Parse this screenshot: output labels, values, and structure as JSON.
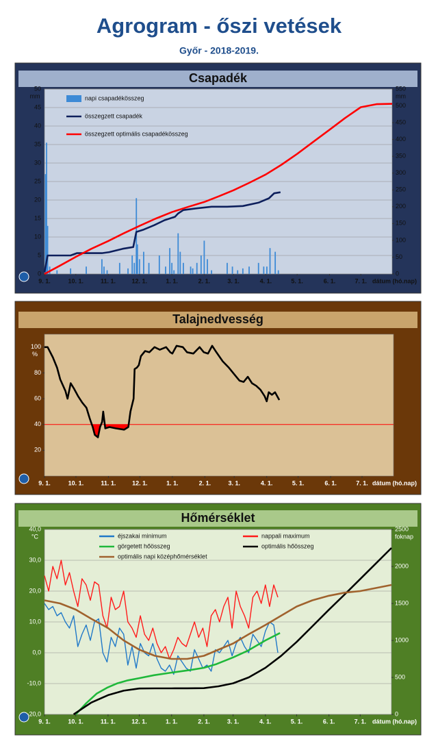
{
  "title": "Agrogram - őszi vetések",
  "subtitle": "Győr - 2018-2019.",
  "chart_data": [
    {
      "type": "combo",
      "title": "Csapadék",
      "ylabel": "mm",
      "y2label": "mm",
      "xlabel": "dátum (hó.nap)",
      "frame_color": "#24345a",
      "plot_color": "#c9d3e3",
      "grid": true,
      "legend": "upper left",
      "xlim": [
        0,
        333
      ],
      "xticks": [
        {
          "value": 0,
          "label": "9. 1."
        },
        {
          "value": 30,
          "label": "10. 1."
        },
        {
          "value": 61,
          "label": "11. 1."
        },
        {
          "value": 91,
          "label": "12. 1."
        },
        {
          "value": 122,
          "label": "1. 1."
        },
        {
          "value": 153,
          "label": "2. 1."
        },
        {
          "value": 181,
          "label": "3. 1."
        },
        {
          "value": 212,
          "label": "4. 1."
        },
        {
          "value": 242,
          "label": "5. 1."
        },
        {
          "value": 273,
          "label": "6. 1."
        },
        {
          "value": 303,
          "label": "7. 1."
        }
      ],
      "ylim": [
        0,
        50
      ],
      "yticks": [
        0,
        5,
        10,
        15,
        20,
        25,
        30,
        35,
        40,
        45,
        50
      ],
      "y2lim": [
        0,
        550
      ],
      "y2ticks": [
        0,
        50,
        100,
        150,
        200,
        250,
        300,
        350,
        400,
        450,
        500,
        550
      ],
      "series": [
        {
          "name": "napi csapadékösszeg",
          "type": "bar",
          "color": "#3d8ad6",
          "x": [
            1,
            2,
            3,
            5,
            12,
            25,
            40,
            55,
            57,
            60,
            72,
            80,
            84,
            86,
            88,
            89,
            91,
            95,
            100,
            110,
            116,
            120,
            122,
            124,
            128,
            130,
            133,
            140,
            142,
            146,
            150,
            153,
            156,
            160,
            175,
            180,
            185,
            190,
            196,
            205,
            210,
            213,
            216,
            221,
            224
          ],
          "values": [
            27,
            35.5,
            13,
            2,
            1,
            1.5,
            2,
            4,
            2,
            1,
            3,
            1.5,
            5,
            3,
            20.5,
            8,
            4,
            6,
            3,
            5,
            2,
            7,
            3,
            1,
            11,
            6,
            3,
            2,
            1.5,
            3,
            5,
            9,
            4,
            1,
            3,
            2,
            1,
            1.5,
            2,
            3,
            2,
            2,
            7,
            6,
            1
          ]
        },
        {
          "name": "összegzett csapadék",
          "type": "line",
          "color": "#0d1f5c",
          "axis": "y2",
          "x": [
            0,
            3,
            10,
            25,
            31,
            55,
            62,
            75,
            85,
            88,
            95,
            105,
            115,
            125,
            128,
            133,
            145,
            160,
            175,
            190,
            205,
            215,
            220,
            226
          ],
          "values": [
            5,
            55,
            55,
            55,
            62,
            62,
            65,
            75,
            80,
            125,
            132,
            145,
            160,
            170,
            180,
            190,
            195,
            200,
            200,
            202,
            212,
            225,
            240,
            243
          ]
        },
        {
          "name": "összegzett optimális csapadékösszeg",
          "type": "line",
          "color": "#ff0000",
          "axis": "y2",
          "x": [
            0,
            15,
            30,
            45,
            61,
            76,
            91,
            106,
            122,
            137,
            153,
            167,
            181,
            196,
            212,
            227,
            242,
            257,
            273,
            288,
            303,
            318,
            333
          ],
          "values": [
            0,
            25,
            51,
            75,
            98,
            121,
            143,
            164,
            184,
            199,
            214,
            231,
            249,
            271,
            296,
            325,
            357,
            392,
            429,
            464,
            496,
            505,
            506
          ]
        }
      ]
    },
    {
      "type": "line",
      "title": "Talajnedvesség",
      "ylabel": "%",
      "xlabel": "dátum (hó.nap)",
      "frame_color": "#6b3809",
      "plot_color": "#dbc196",
      "grid": false,
      "threshold": 40,
      "threshold_color": "#ff0000",
      "xlim": [
        0,
        333
      ],
      "xticks": [
        {
          "value": 0,
          "label": "9. 1."
        },
        {
          "value": 30,
          "label": "10. 1."
        },
        {
          "value": 61,
          "label": "11. 1."
        },
        {
          "value": 91,
          "label": "12. 1."
        },
        {
          "value": 122,
          "label": "1. 1."
        },
        {
          "value": 153,
          "label": "2. 1."
        },
        {
          "value": 181,
          "label": "3. 1."
        },
        {
          "value": 212,
          "label": "4. 1."
        },
        {
          "value": 242,
          "label": "5. 1."
        },
        {
          "value": 273,
          "label": "6. 1."
        },
        {
          "value": 303,
          "label": "7. 1."
        }
      ],
      "ylim": [
        0,
        110
      ],
      "yticks": [
        20,
        40,
        60,
        80,
        100
      ],
      "series": [
        {
          "type": "line",
          "color": "#000000",
          "x": [
            0,
            3,
            8,
            12,
            15,
            20,
            22,
            25,
            28,
            32,
            36,
            40,
            43,
            46,
            48,
            51,
            53,
            55,
            56,
            58,
            62,
            68,
            76,
            80,
            82,
            85,
            86,
            88,
            90,
            92,
            96,
            100,
            105,
            110,
            116,
            120,
            122,
            126,
            132,
            136,
            142,
            148,
            152,
            156,
            160,
            164,
            170,
            176,
            182,
            186,
            190,
            194,
            198,
            202,
            206,
            210,
            212,
            214,
            217,
            220,
            224
          ],
          "values": [
            100,
            100,
            92,
            84,
            75,
            66,
            60,
            72,
            68,
            62,
            57,
            53,
            45,
            38,
            32,
            30,
            38,
            42,
            50,
            37,
            38,
            37,
            36,
            38,
            50,
            60,
            83,
            84,
            86,
            93,
            97,
            96,
            100,
            98,
            100,
            96,
            95,
            101,
            100,
            96,
            95,
            100,
            96,
            95,
            101,
            96,
            89,
            84,
            78,
            74,
            73,
            77,
            72,
            70,
            67,
            62,
            58,
            65,
            63,
            65,
            59
          ]
        }
      ]
    },
    {
      "type": "combo",
      "title": "Hőmérséklet",
      "ylabel": "°C",
      "y2label": "foknap",
      "xlabel": "dátum (hó.nap)",
      "frame_color": "#4f7f25",
      "plot_color": "#e4eed6",
      "grid": true,
      "legend": "upper center",
      "xlim": [
        0,
        333
      ],
      "xticks": [
        {
          "value": 0,
          "label": "9. 1."
        },
        {
          "value": 30,
          "label": "10. 1."
        },
        {
          "value": 61,
          "label": "11. 1."
        },
        {
          "value": 91,
          "label": "12. 1."
        },
        {
          "value": 122,
          "label": "1. 1."
        },
        {
          "value": 153,
          "label": "2. 1."
        },
        {
          "value": 181,
          "label": "3. 1."
        },
        {
          "value": 212,
          "label": "4. 1."
        },
        {
          "value": 242,
          "label": "5. 1."
        },
        {
          "value": 273,
          "label": "6. 1."
        },
        {
          "value": 303,
          "label": "7. 1."
        }
      ],
      "ylim": [
        -20,
        40
      ],
      "yticks": [
        {
          "value": -20,
          "label": "-20,0"
        },
        {
          "value": -10,
          "label": "-10,0"
        },
        {
          "value": 0,
          "label": "0,0"
        },
        {
          "value": 10,
          "label": "10,0"
        },
        {
          "value": 20,
          "label": "20,0"
        },
        {
          "value": 30,
          "label": "30,0"
        },
        {
          "value": 40,
          "label": "40,0"
        }
      ],
      "y2lim": [
        0,
        2500
      ],
      "y2ticks": [
        0,
        500,
        1000,
        1500,
        2000,
        2500
      ],
      "x": [
        0,
        4,
        8,
        12,
        16,
        20,
        24,
        28,
        32,
        36,
        40,
        44,
        48,
        52,
        56,
        60,
        64,
        68,
        72,
        76,
        80,
        84,
        88,
        92,
        96,
        100,
        104,
        108,
        112,
        116,
        120,
        124,
        128,
        132,
        136,
        140,
        144,
        148,
        152,
        156,
        160,
        164,
        168,
        172,
        176,
        180,
        184,
        188,
        192,
        196,
        200,
        204,
        208,
        212,
        216,
        220,
        224
      ],
      "series": [
        {
          "name": "éjszakai minimum",
          "type": "line",
          "color": "#1f78c8",
          "values": [
            16,
            14,
            15,
            12,
            13,
            10,
            8,
            12,
            2,
            6,
            9,
            4,
            10,
            11,
            0,
            -3,
            5,
            2,
            8,
            6,
            -4,
            2,
            -5,
            3,
            0,
            -1,
            3,
            -2,
            -5,
            -6,
            -4,
            -7,
            -1,
            -3,
            -5,
            -6,
            1,
            -2,
            -5,
            -4,
            -6,
            1,
            0,
            2,
            4,
            -1,
            3,
            5,
            2,
            0,
            6,
            4,
            2,
            7,
            10,
            9,
            0
          ]
        },
        {
          "name": "nappali maximum",
          "type": "line",
          "color": "#ff1a1a",
          "values": [
            25,
            20,
            28,
            24,
            30,
            22,
            26,
            20,
            15,
            24,
            22,
            17,
            23,
            22,
            12,
            8,
            18,
            14,
            15,
            20,
            10,
            8,
            5,
            12,
            6,
            4,
            8,
            3,
            0,
            2,
            -2,
            1,
            5,
            3,
            2,
            6,
            10,
            5,
            8,
            2,
            12,
            14,
            10,
            15,
            18,
            8,
            20,
            15,
            12,
            8,
            18,
            20,
            16,
            22,
            15,
            22,
            18
          ]
        },
        {
          "name": "görgetett hőösszeg",
          "type": "line",
          "color": "#1fb83a",
          "axis": "y2",
          "x": [
            30,
            40,
            50,
            60,
            70,
            80,
            91,
            105,
            122,
            140,
            153,
            165,
            181,
            195,
            212,
            226
          ],
          "values": [
            0,
            150,
            280,
            360,
            420,
            460,
            490,
            530,
            565,
            600,
            630,
            680,
            770,
            860,
            1000,
            1100
          ]
        },
        {
          "name": "optimális hőösszeg",
          "type": "line",
          "color": "#000000",
          "axis": "y2",
          "x": [
            28,
            45,
            61,
            76,
            91,
            106,
            122,
            137,
            153,
            167,
            181,
            196,
            212,
            227,
            242,
            257,
            273,
            288,
            303,
            318,
            333
          ],
          "values": [
            0,
            160,
            260,
            320,
            350,
            352,
            352,
            353,
            355,
            380,
            420,
            500,
            630,
            790,
            980,
            1190,
            1415,
            1620,
            1830,
            2040,
            2250
          ]
        },
        {
          "name": "optimális napi középhőmérséklet",
          "type": "line",
          "color": "#a0622d",
          "x": [
            0,
            15,
            30,
            45,
            61,
            76,
            91,
            106,
            122,
            137,
            153,
            167,
            181,
            196,
            212,
            227,
            242,
            257,
            273,
            288,
            303,
            318,
            333
          ],
          "values": [
            17,
            16,
            14,
            11,
            8,
            4,
            1,
            -1,
            -2,
            -2,
            -1,
            1,
            3,
            6,
            9,
            12,
            15,
            17,
            18.5,
            19.5,
            20,
            21,
            22
          ]
        }
      ]
    }
  ]
}
